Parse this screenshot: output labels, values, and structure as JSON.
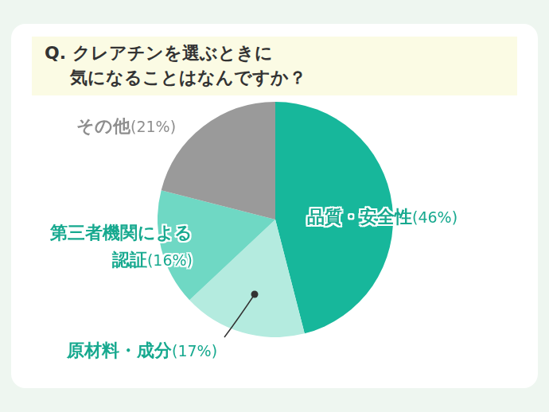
{
  "chart_data": {
    "type": "pie",
    "title": "Q. クレアチンを選ぶときに\n気になることはなんですか？",
    "categories": [
      "品質・安全性",
      "原材料・成分",
      "第三者機関による認証",
      "その他"
    ],
    "values": [
      46,
      17,
      16,
      21
    ],
    "value_labels": [
      "(46%)",
      "(17%)",
      "(16%)",
      "(21%)"
    ],
    "colors": [
      "#17b79b",
      "#b4ebdf",
      "#6fd8c4",
      "#9a9a9a"
    ],
    "data_labels": true
  }
}
